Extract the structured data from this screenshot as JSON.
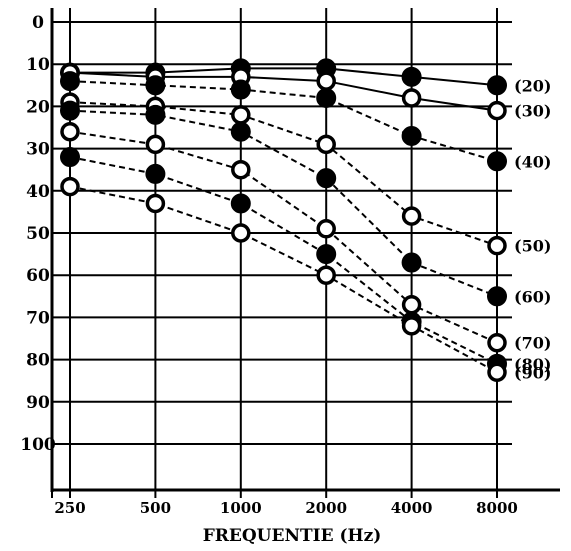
{
  "chart_data": {
    "type": "line",
    "title": "",
    "xlabel": "FREQUENTIE (Hz)",
    "ylabel": "",
    "categories": [
      "250",
      "500",
      "1000",
      "2000",
      "4000",
      "8000"
    ],
    "y_ticks": [
      "0",
      "10",
      "20",
      "30",
      "40",
      "50",
      "60",
      "70",
      "80",
      "90",
      "100"
    ],
    "ylim": [
      0,
      110
    ],
    "y_inverted": true,
    "grid": true,
    "series": [
      {
        "name": "(20)",
        "marker": "filled",
        "line": "solid",
        "values": [
          12,
          12,
          11,
          11,
          13,
          15
        ]
      },
      {
        "name": "(30)",
        "marker": "open",
        "line": "solid",
        "values": [
          12,
          13,
          13,
          14,
          18,
          21
        ]
      },
      {
        "name": "(40)",
        "marker": "filled",
        "line": "dashed",
        "values": [
          14,
          15,
          16,
          18,
          27,
          33
        ]
      },
      {
        "name": "(50)",
        "marker": "open",
        "line": "dashed",
        "values": [
          19,
          20,
          22,
          29,
          46,
          53
        ]
      },
      {
        "name": "(60)",
        "marker": "filled",
        "line": "dashed",
        "values": [
          21,
          22,
          26,
          37,
          57,
          65
        ]
      },
      {
        "name": "(70)",
        "marker": "open",
        "line": "dashed",
        "values": [
          26,
          29,
          35,
          49,
          67,
          76
        ]
      },
      {
        "name": "(80)",
        "marker": "filled",
        "line": "dashed",
        "values": [
          32,
          36,
          43,
          55,
          71,
          81
        ]
      },
      {
        "name": "(90)",
        "marker": "open",
        "line": "dashed",
        "values": [
          39,
          43,
          50,
          60,
          72,
          83
        ]
      }
    ]
  }
}
